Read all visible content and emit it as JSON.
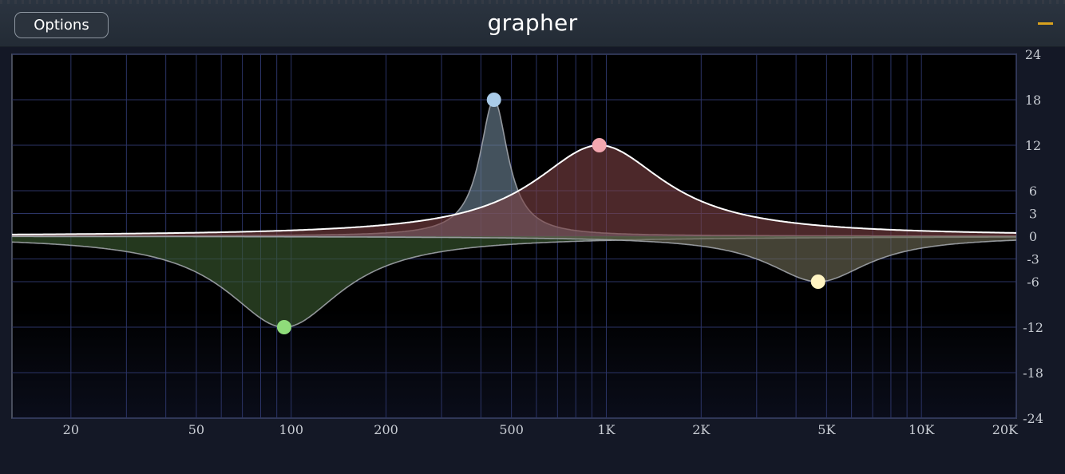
{
  "window": {
    "title": "grapher",
    "options_label": "Options",
    "minimize_icon": "minimize-icon"
  },
  "colors": {
    "background": "#000000",
    "panel": "#141826",
    "grid": "#2b3466",
    "accent": "#d9a21e"
  },
  "chart_data": {
    "type": "line",
    "title": "",
    "xlabel": "",
    "ylabel": "",
    "x_scale": "log",
    "xlim": [
      13,
      20000
    ],
    "ylim": [
      -24,
      24
    ],
    "x_ticks": [
      {
        "value": 20,
        "label": "20"
      },
      {
        "value": 50,
        "label": "50"
      },
      {
        "value": 100,
        "label": "100"
      },
      {
        "value": 200,
        "label": "200"
      },
      {
        "value": 500,
        "label": "500"
      },
      {
        "value": 1000,
        "label": "1K"
      },
      {
        "value": 2000,
        "label": "2K"
      },
      {
        "value": 5000,
        "label": "5K"
      },
      {
        "value": 10000,
        "label": "10K"
      },
      {
        "value": 20000,
        "label": "20K"
      }
    ],
    "y_ticks": [
      24,
      18,
      12,
      6,
      3,
      0,
      -3,
      -6,
      -12,
      -18,
      -24
    ],
    "grid": true,
    "series": [
      {
        "color": "#8fdc7a",
        "fill": "#3a5a30",
        "freq": 95,
        "gain": -12,
        "width_oct": 0.75
      },
      {
        "color": "#a9cbe8",
        "fill": "#6d8596",
        "freq": 440,
        "gain": 18,
        "width_oct": 0.18
      },
      {
        "color": "#f4a7b0",
        "fill": "#7a4044",
        "freq": 950,
        "gain": 12,
        "width_oct": 0.85
      },
      {
        "color": "#fff4c2",
        "fill": "#6e6a56",
        "freq": 4700,
        "gain": -6,
        "width_oct": 0.65
      }
    ]
  }
}
